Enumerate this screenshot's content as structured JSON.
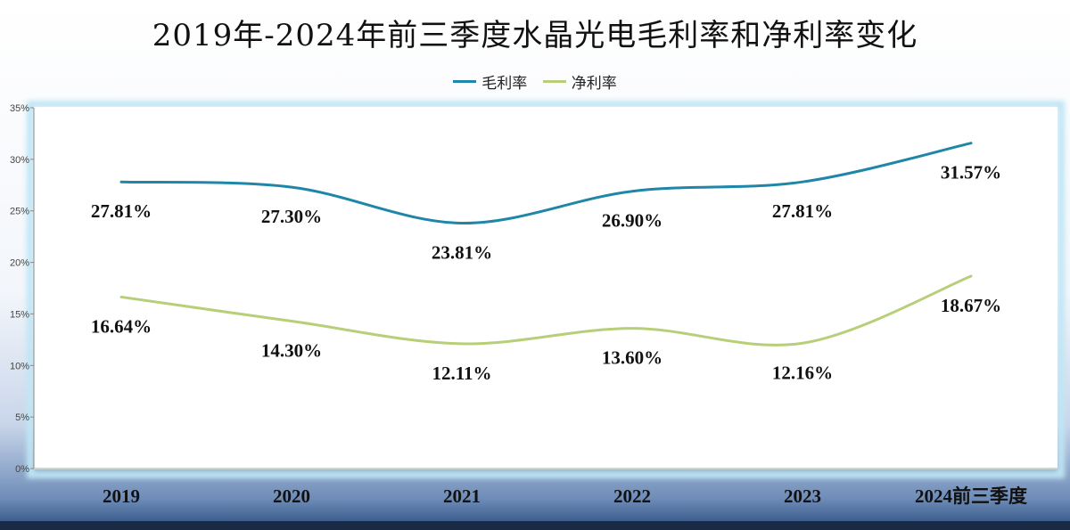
{
  "chart_data": {
    "type": "line",
    "title": "2019年-2024年前三季度水晶光电毛利率和净利率变化",
    "categories": [
      "2019",
      "2020",
      "2021",
      "2022",
      "2023",
      "2024前三季度"
    ],
    "series": [
      {
        "name": "毛利率",
        "color": "#1f86a8",
        "values": [
          27.81,
          27.3,
          23.81,
          26.9,
          27.81,
          31.57
        ],
        "labels": [
          "27.81%",
          "27.30%",
          "23.81%",
          "26.90%",
          "27.81%",
          "31.57%"
        ]
      },
      {
        "name": "净利率",
        "color": "#b8cf7a",
        "values": [
          16.64,
          14.3,
          12.11,
          13.6,
          12.16,
          18.67
        ],
        "labels": [
          "16.64%",
          "14.30%",
          "12.11%",
          "13.60%",
          "12.16%",
          "18.67%"
        ]
      }
    ],
    "yticks": [
      "0%",
      "5%",
      "10%",
      "15%",
      "20%",
      "25%",
      "30%",
      "35%"
    ],
    "ylim": [
      0,
      35
    ],
    "legend_position": "top-center",
    "grid": false,
    "smooth": true
  }
}
